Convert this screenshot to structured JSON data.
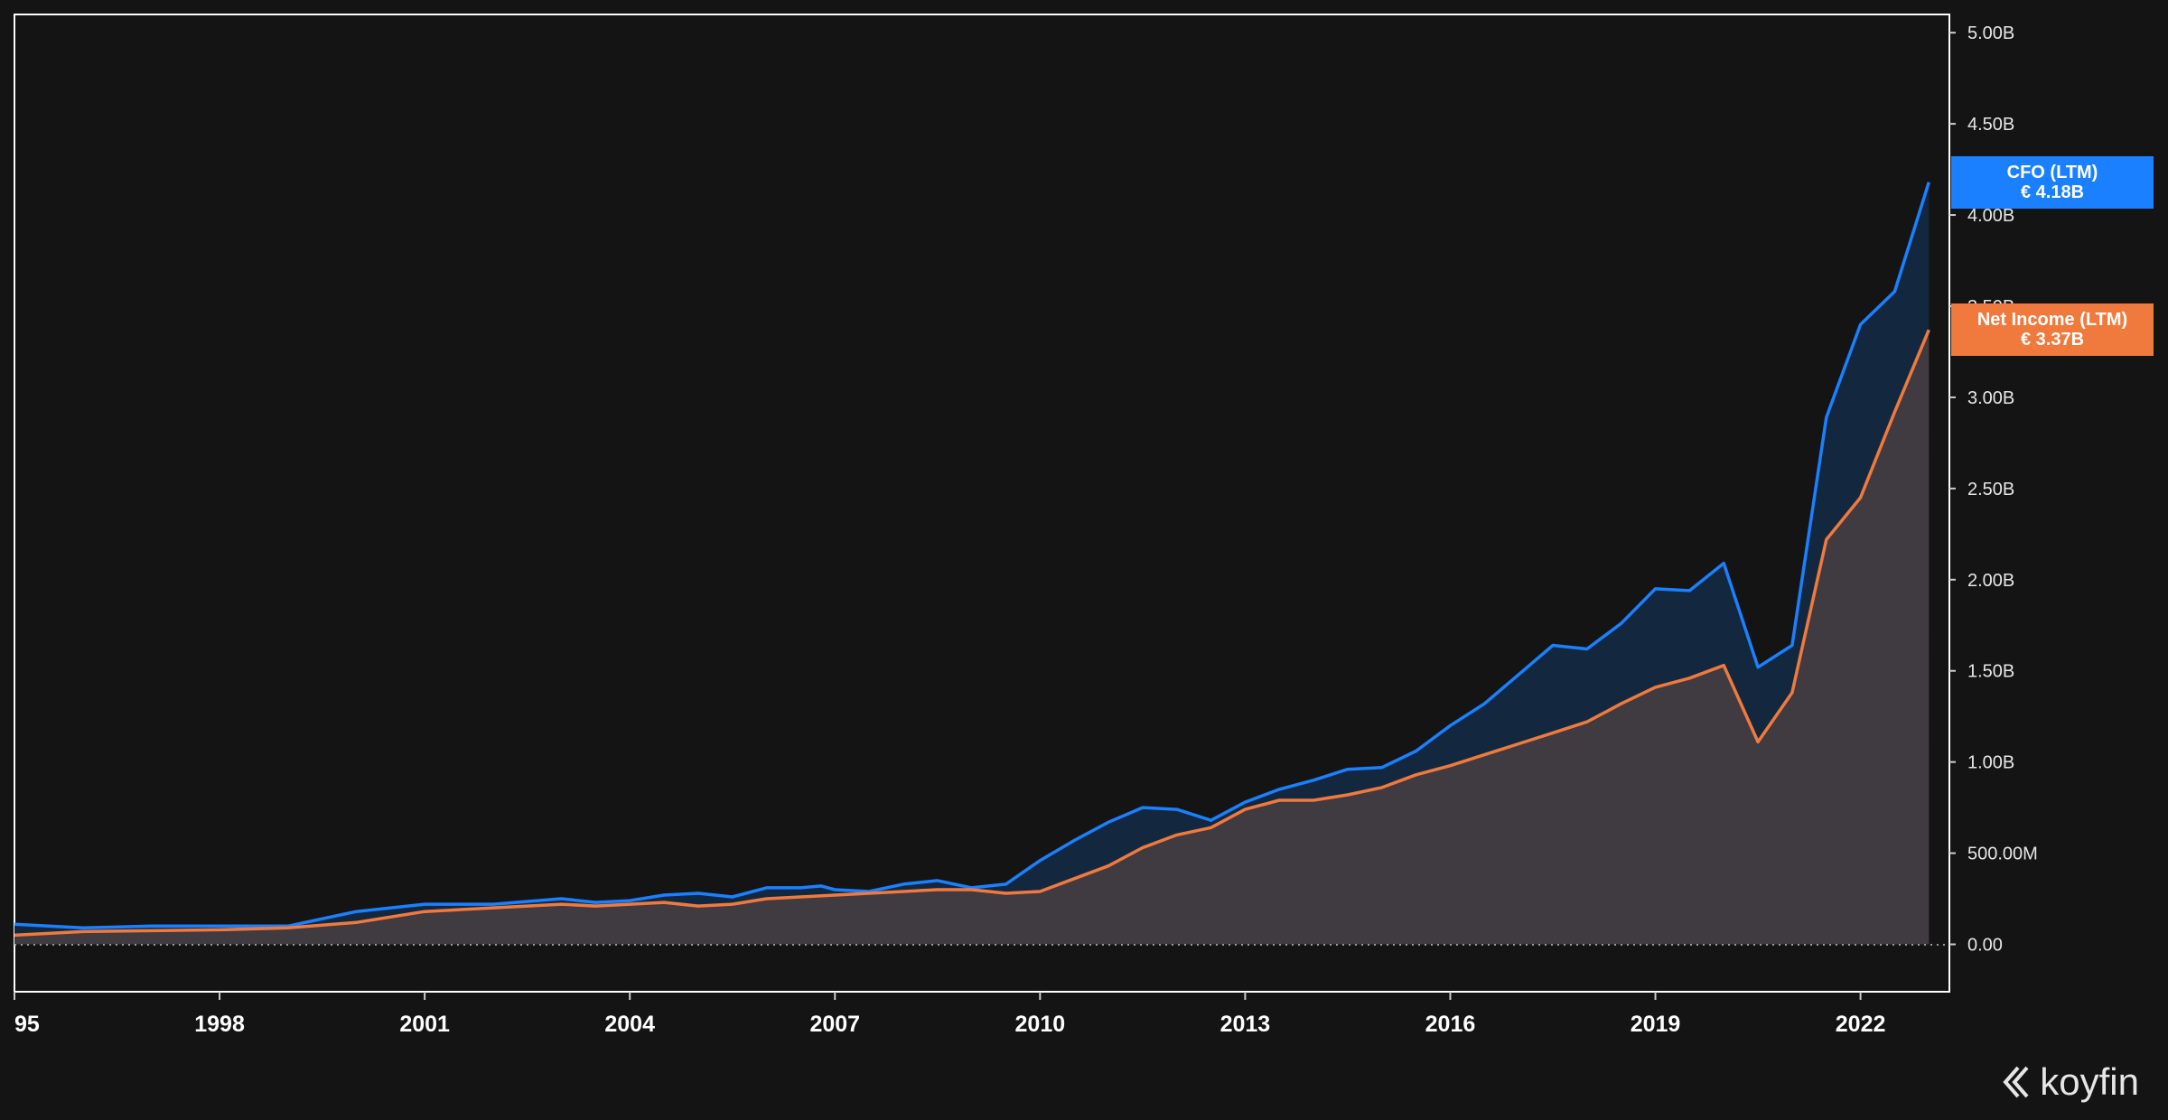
{
  "chart_data": {
    "type": "area",
    "x_ticks": [
      "95",
      "1998",
      "2001",
      "2004",
      "2007",
      "2010",
      "2013",
      "2016",
      "2019",
      "2022"
    ],
    "x_tick_years": [
      1995,
      1998,
      2001,
      2004,
      2007,
      2010,
      2013,
      2016,
      2019,
      2022
    ],
    "xlim": [
      1995,
      2023.3
    ],
    "y_ticks": [
      "5.00B",
      "4.50B",
      "4.00B",
      "3.50B",
      "3.00B",
      "2.50B",
      "2.00B",
      "1.50B",
      "1.00B",
      "500.00M",
      "0.00"
    ],
    "y_tick_values": [
      5.0,
      4.5,
      4.0,
      3.5,
      3.0,
      2.5,
      2.0,
      1.5,
      1.0,
      0.5,
      0.0
    ],
    "ylim": [
      -0.26,
      5.1
    ],
    "y_unit": "B",
    "series": [
      {
        "name": "CFO (LTM)",
        "color": "#1a80ff",
        "fill": "#13283f",
        "last_value_label": "€ 4.18B",
        "x": [
          1995.0,
          1996.0,
          1997.0,
          1998.0,
          1999.0,
          2000.0,
          2001.0,
          2002.0,
          2003.0,
          2003.5,
          2004.0,
          2004.5,
          2005.0,
          2005.5,
          2006.0,
          2006.5,
          2006.8,
          2007.0,
          2007.5,
          2008.0,
          2008.5,
          2009.0,
          2009.5,
          2010.0,
          2010.5,
          2011.0,
          2011.5,
          2012.0,
          2012.5,
          2013.0,
          2013.5,
          2014.0,
          2014.5,
          2015.0,
          2015.5,
          2016.0,
          2016.5,
          2017.0,
          2017.5,
          2018.0,
          2018.5,
          2019.0,
          2019.5,
          2020.0,
          2020.5,
          2021.0,
          2021.5,
          2022.0,
          2022.5,
          2023.0
        ],
        "values": [
          0.11,
          0.09,
          0.1,
          0.1,
          0.1,
          0.18,
          0.22,
          0.22,
          0.25,
          0.23,
          0.24,
          0.27,
          0.28,
          0.26,
          0.31,
          0.31,
          0.32,
          0.3,
          0.29,
          0.33,
          0.35,
          0.31,
          0.33,
          0.46,
          0.57,
          0.67,
          0.75,
          0.74,
          0.68,
          0.78,
          0.85,
          0.9,
          0.96,
          0.97,
          1.06,
          1.2,
          1.32,
          1.48,
          1.64,
          1.62,
          1.76,
          1.95,
          1.94,
          2.09,
          1.52,
          1.64,
          2.89,
          3.4,
          3.58,
          4.18
        ]
      },
      {
        "name": "Net Income (LTM)",
        "color": "#f07a3e",
        "fill": "#403a41",
        "last_value_label": "€ 3.37B",
        "x": [
          1995.0,
          1996.0,
          1997.0,
          1998.0,
          1999.0,
          2000.0,
          2001.0,
          2002.0,
          2003.0,
          2003.5,
          2004.0,
          2004.5,
          2005.0,
          2005.5,
          2006.0,
          2006.5,
          2007.0,
          2007.5,
          2008.0,
          2008.5,
          2009.0,
          2009.5,
          2010.0,
          2010.5,
          2011.0,
          2011.5,
          2012.0,
          2012.5,
          2013.0,
          2013.5,
          2014.0,
          2014.5,
          2015.0,
          2015.5,
          2016.0,
          2016.5,
          2017.0,
          2017.5,
          2018.0,
          2018.5,
          2019.0,
          2019.5,
          2020.0,
          2020.5,
          2021.0,
          2021.5,
          2022.0,
          2022.5,
          2023.0
        ],
        "values": [
          0.05,
          0.07,
          0.075,
          0.08,
          0.09,
          0.12,
          0.18,
          0.2,
          0.22,
          0.21,
          0.22,
          0.23,
          0.21,
          0.22,
          0.25,
          0.26,
          0.27,
          0.28,
          0.29,
          0.3,
          0.3,
          0.28,
          0.29,
          0.36,
          0.43,
          0.53,
          0.6,
          0.64,
          0.74,
          0.79,
          0.79,
          0.82,
          0.86,
          0.93,
          0.98,
          1.04,
          1.1,
          1.16,
          1.22,
          1.32,
          1.41,
          1.46,
          1.53,
          1.11,
          1.38,
          2.22,
          2.45,
          2.92,
          3.37
        ]
      }
    ],
    "grid": false,
    "legend": "right-edge value tags"
  },
  "branding": {
    "logo_text": "koyfin"
  }
}
